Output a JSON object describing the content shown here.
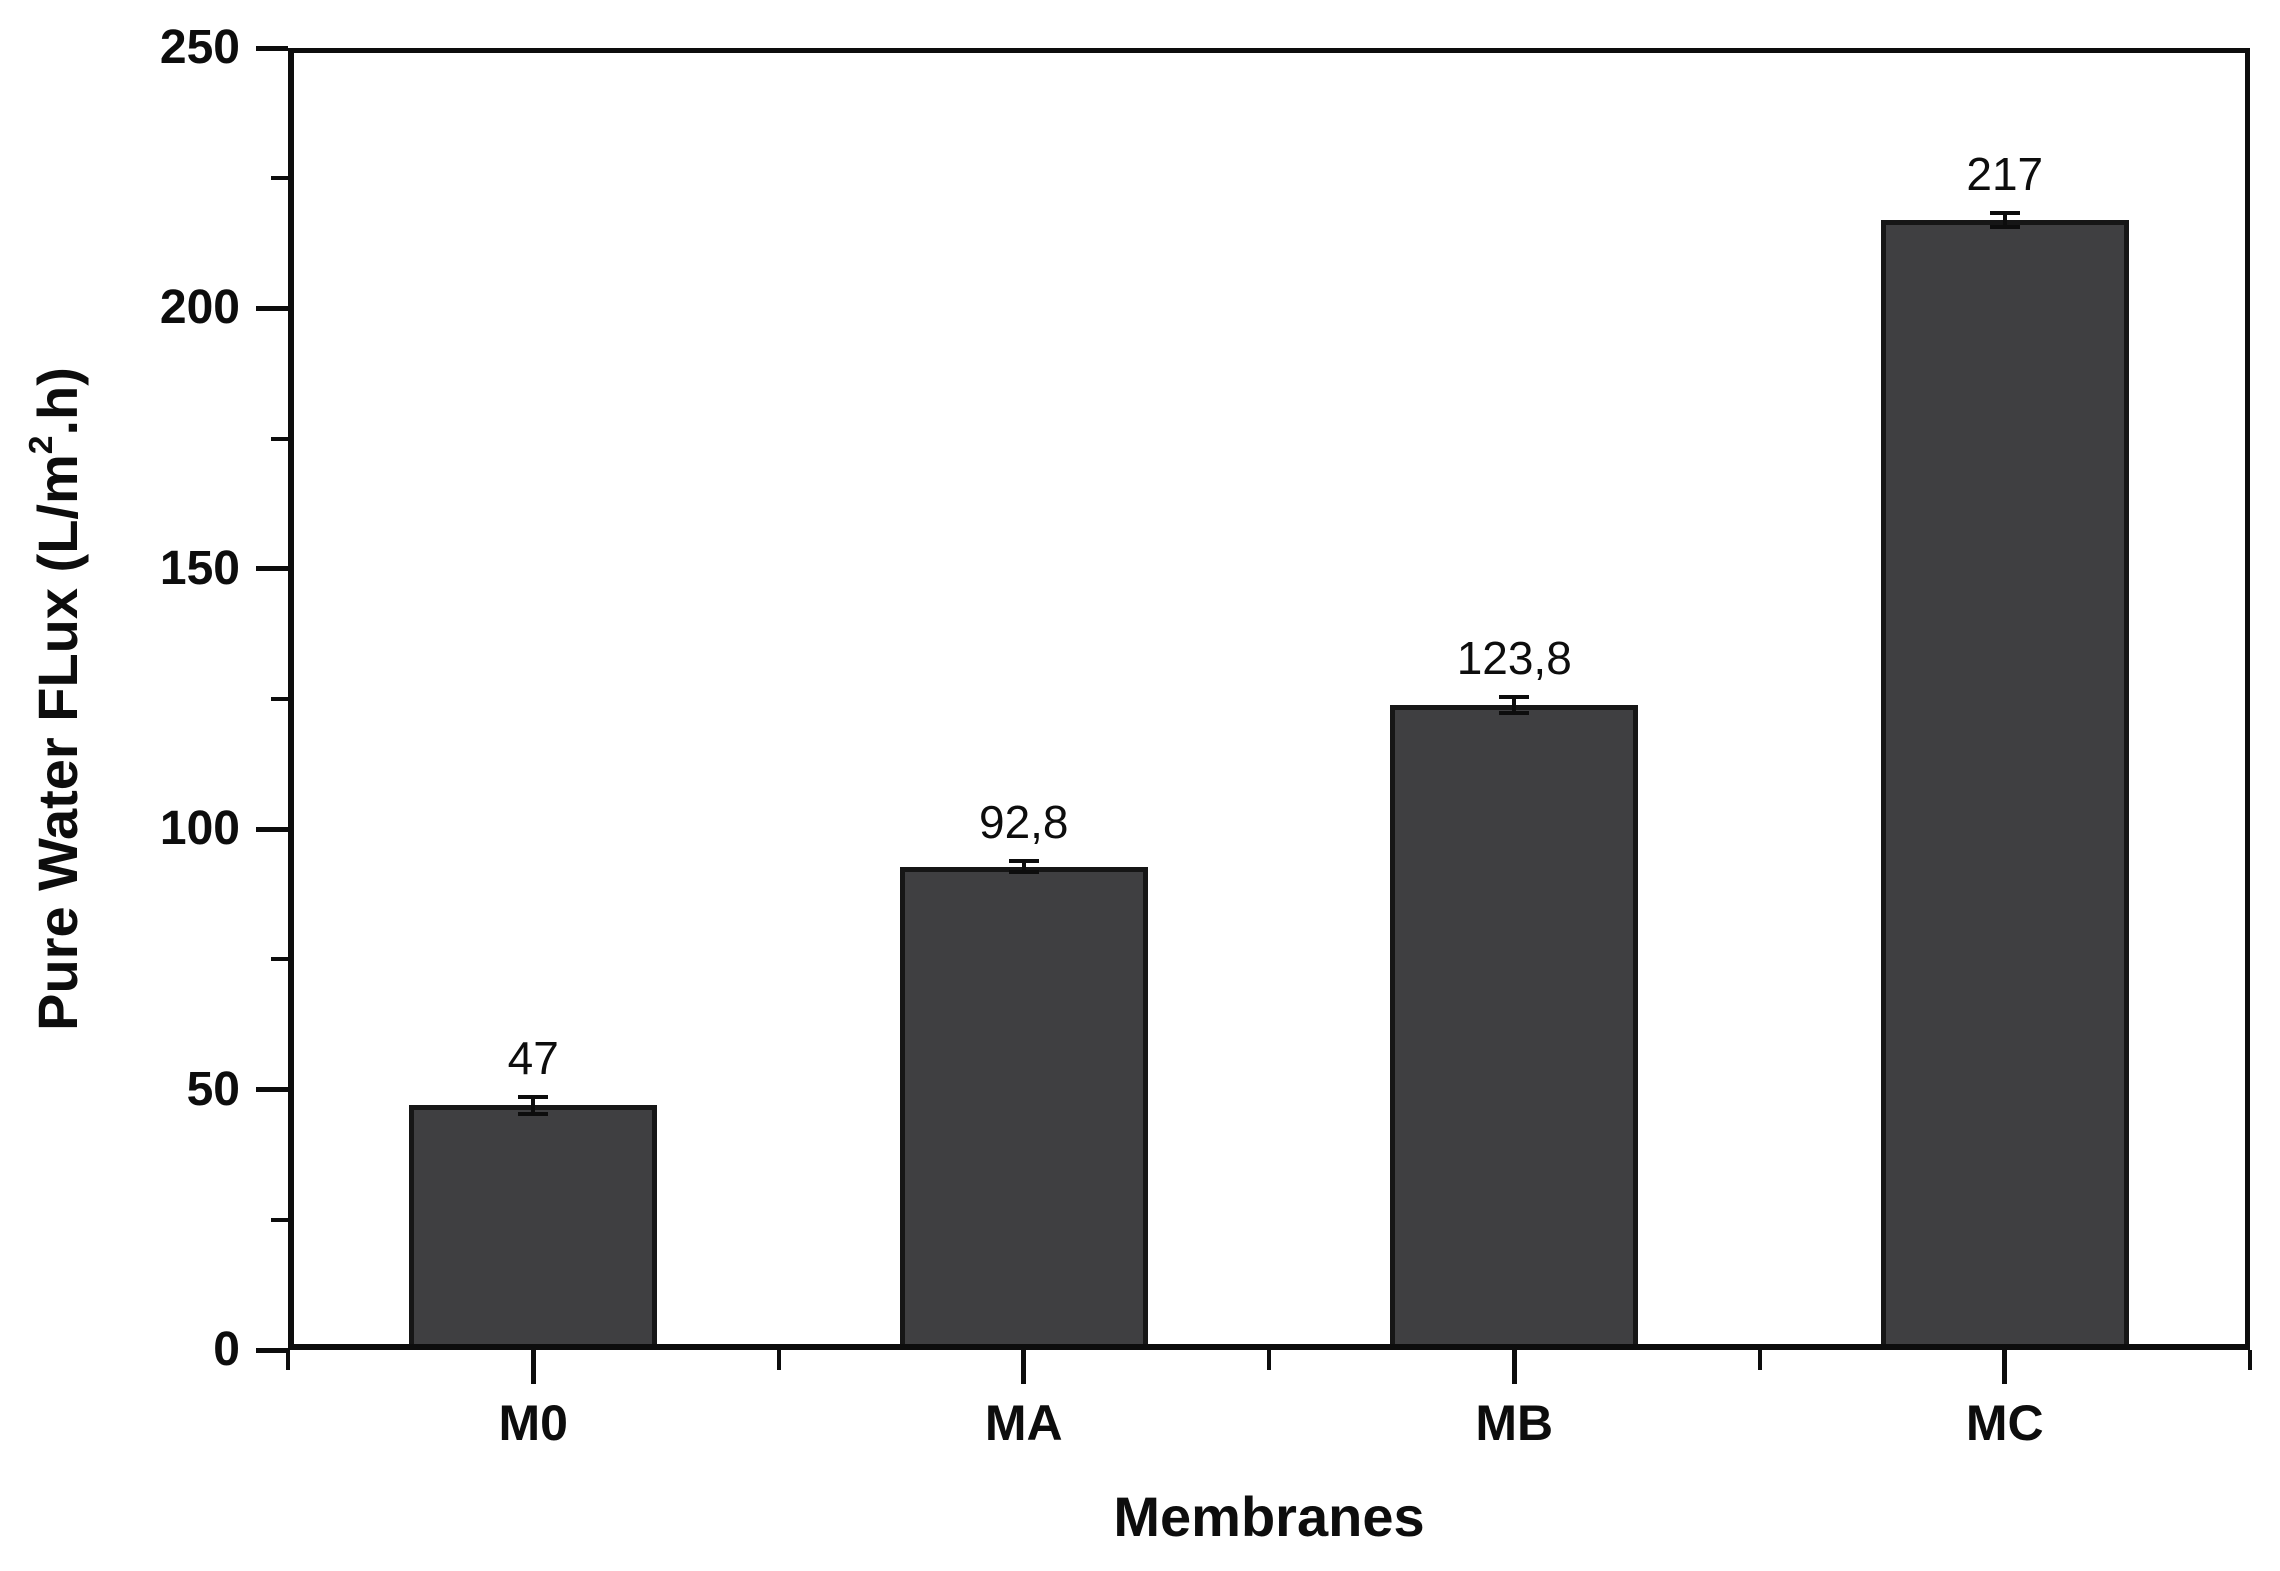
{
  "chart_data": {
    "type": "bar",
    "title": "",
    "categories": [
      "M0",
      "MA",
      "MB",
      "MC"
    ],
    "values": [
      47,
      92.8,
      123.8,
      217
    ],
    "value_labels": [
      "47",
      "92,8",
      "123,8",
      "217"
    ],
    "errors": [
      1.6,
      1.0,
      1.5,
      1.4
    ],
    "xlabel": "Membranes",
    "ylabel": "Pure Water FLux (L/m2.h)",
    "ylabel_parts": {
      "pre": "Pure Water FLux (L/m",
      "sup": "2",
      "post": ".h)"
    },
    "ylim": [
      0,
      250
    ],
    "yticks": [
      0,
      50,
      100,
      150,
      200,
      250
    ],
    "ytick_labels": [
      "0",
      "50",
      "100",
      "150",
      "200",
      "250"
    ],
    "ytick_minor_step": 25,
    "xtick_minor": "between-categories",
    "grid": false,
    "legend": "none",
    "bar_color": "#3f3f41",
    "bar_border_color": "#161616",
    "axis_color": "#0d0d0d",
    "text_color": "#0d0d0d",
    "background": "#ffffff"
  }
}
